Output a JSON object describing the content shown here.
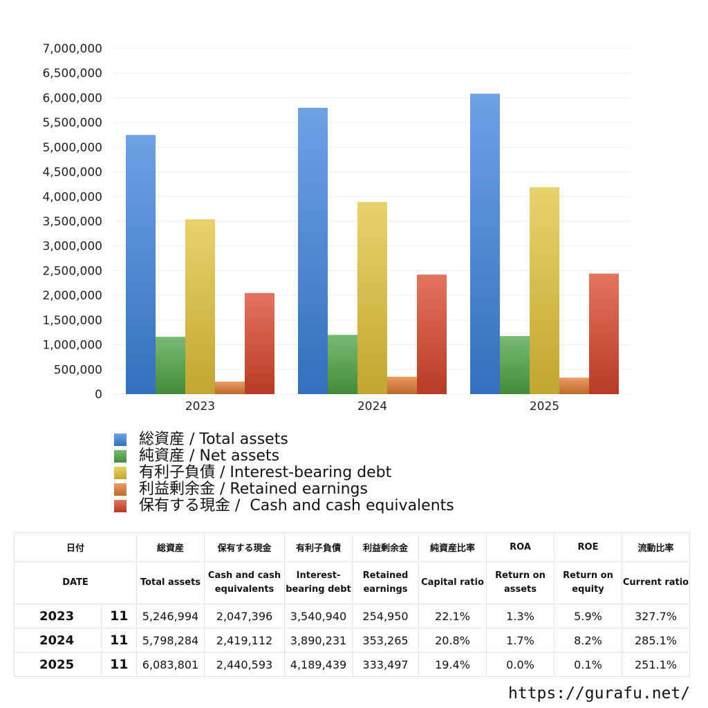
{
  "chart_data": {
    "type": "bar",
    "categories": [
      "2023",
      "2024",
      "2025"
    ],
    "series": [
      {
        "name": "総資産 / Total assets",
        "color": "#3d82de",
        "values": [
          5246994,
          5798284,
          6083801
        ]
      },
      {
        "name": "純資産 / Net assets",
        "color": "#4ea344",
        "values": [
          1160000,
          1200000,
          1175000
        ]
      },
      {
        "name": "有利子負債 / Interest-bearing debt",
        "color": "#e2c33a",
        "values": [
          3540940,
          3890231,
          4189439
        ]
      },
      {
        "name": "利益剰余金 / Retained earnings",
        "color": "#e07b30",
        "values": [
          254950,
          353265,
          333497
        ]
      },
      {
        "name": "保有する現金 /  Cash and cash equivalents",
        "color": "#d9452a",
        "values": [
          2047396,
          2419112,
          2440593
        ]
      }
    ],
    "yticks": [
      "7,000,000",
      "6,500,000",
      "6,000,000",
      "5,500,000",
      "5,000,000",
      "4,500,000",
      "4,000,000",
      "3,500,000",
      "3,000,000",
      "2,500,000",
      "2,000,000",
      "1,500,000",
      "1,000,000",
      "500,000",
      "0"
    ],
    "ylim": [
      0,
      7000000
    ],
    "grid": true,
    "legend_position": "bottom-left"
  },
  "table": {
    "headers_jp": [
      "日付",
      "",
      "総資産",
      "保有する現金",
      "有利子負債",
      "利益剰余金",
      "純資産比率",
      "ROA",
      "ROE",
      "流動比率"
    ],
    "headers_en": [
      "DATE",
      "",
      "Total assets",
      "Cash and cash equivalents",
      "Interest-bearing debt",
      "Retained earnings",
      "Capital ratio",
      "Return on assets",
      "Return on equity",
      "Current ratio"
    ],
    "rows": [
      [
        "2023",
        "11",
        "5,246,994",
        "2,047,396",
        "3,540,940",
        "254,950",
        "22.1%",
        "1.3%",
        "5.9%",
        "327.7%"
      ],
      [
        "2024",
        "11",
        "5,798,284",
        "2,419,112",
        "3,890,231",
        "353,265",
        "20.8%",
        "1.7%",
        "8.2%",
        "285.1%"
      ],
      [
        "2025",
        "11",
        "6,083,801",
        "2,440,593",
        "4,189,439",
        "333,497",
        "19.4%",
        "0.0%",
        "0.1%",
        "251.1%"
      ]
    ]
  },
  "footer": {
    "url": "https://gurafu.net/"
  }
}
